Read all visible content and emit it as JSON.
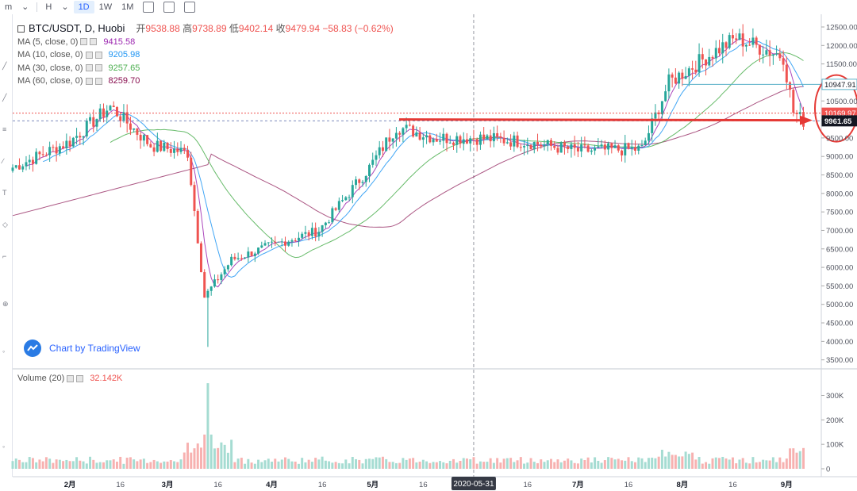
{
  "toolbar": {
    "items": [
      "m",
      "H",
      "1D",
      "1W",
      "1M"
    ],
    "active": "1D"
  },
  "legend": {
    "symbol": "BTC/USDT, D, Huobi",
    "ohlc": {
      "open_label": "开",
      "open": "9538.88",
      "high_label": "高",
      "high": "9738.89",
      "low_label": "低",
      "low": "9402.14",
      "close_label": "收",
      "close": "9479.94",
      "change": "−58.83 (−0.62%)"
    },
    "ma": [
      {
        "label": "MA (5, close, 0)",
        "value": "9415.58",
        "color": "#9c27b0"
      },
      {
        "label": "MA (10, close, 0)",
        "value": "9205.98",
        "color": "#2196f3"
      },
      {
        "label": "MA (30, close, 0)",
        "value": "9257.65",
        "color": "#4caf50"
      },
      {
        "label": "MA (60, close, 0)",
        "value": "8259.70",
        "color": "#880e4f"
      }
    ]
  },
  "branding": {
    "text": "Chart by TradingView"
  },
  "volume_legend": {
    "label": "Volume (20)",
    "value": "32.142K"
  },
  "colors": {
    "up": "#26a69a",
    "down": "#ef5350",
    "annotation": "#e53935",
    "label_blue": "#5ab0c8"
  },
  "chart_data": [
    {
      "type": "candlestick",
      "title": "BTC/USDT, D, Huobi",
      "y_axis_ticks": [
        "3500.00",
        "4000.00",
        "4500.00",
        "5000.00",
        "5500.00",
        "6000.00",
        "6500.00",
        "7000.00",
        "7500.00",
        "8000.00",
        "8500.00",
        "9000.00",
        "9500.00",
        "10000.00",
        "10500.00",
        "11000.00",
        "11500.00",
        "12000.00",
        "12500.00"
      ],
      "ylim": [
        3300,
        12800
      ],
      "x_axis_ticks": [
        "2月",
        "16",
        "3月",
        "16",
        "4月",
        "16",
        "5月",
        "16",
        "6月",
        "16",
        "7月",
        "16",
        "8月",
        "16",
        "9月"
      ],
      "crosshair_date": "2020-05-31",
      "price_labels": [
        {
          "value": "10947.91",
          "style": "outline"
        },
        {
          "value": "10169.97",
          "style": "red"
        },
        {
          "value": "9961.65",
          "style": "dark"
        }
      ],
      "annotations": [
        "horizontal arrow at ~10000 (support)",
        "ellipse around latest prices"
      ],
      "close_trend": [
        {
          "date": "2020-01-15",
          "close": 8700
        },
        {
          "date": "2020-02-01",
          "close": 9400
        },
        {
          "date": "2020-02-13",
          "close": 10350
        },
        {
          "date": "2020-02-25",
          "close": 9300
        },
        {
          "date": "2020-03-07",
          "close": 9100
        },
        {
          "date": "2020-03-12",
          "close": 5200
        },
        {
          "date": "2020-03-20",
          "close": 6200
        },
        {
          "date": "2020-04-01",
          "close": 6600
        },
        {
          "date": "2020-04-15",
          "close": 7000
        },
        {
          "date": "2020-04-30",
          "close": 8700
        },
        {
          "date": "2020-05-08",
          "close": 9800
        },
        {
          "date": "2020-05-20",
          "close": 9500
        },
        {
          "date": "2020-06-01",
          "close": 9500
        },
        {
          "date": "2020-06-15",
          "close": 9400
        },
        {
          "date": "2020-07-01",
          "close": 9150
        },
        {
          "date": "2020-07-20",
          "close": 9200
        },
        {
          "date": "2020-07-28",
          "close": 11000
        },
        {
          "date": "2020-08-10",
          "close": 11800
        },
        {
          "date": "2020-08-17",
          "close": 12200
        },
        {
          "date": "2020-08-31",
          "close": 11700
        },
        {
          "date": "2020-09-03",
          "close": 10200
        },
        {
          "date": "2020-09-06",
          "close": 9961.65
        }
      ]
    },
    {
      "type": "bar",
      "title": "Volume (20)",
      "y_axis_ticks": [
        "0",
        "100K",
        "200K",
        "300K"
      ],
      "ylim": [
        0,
        360000
      ],
      "peak": {
        "date": "2020-03-13",
        "value": 350000
      }
    }
  ]
}
